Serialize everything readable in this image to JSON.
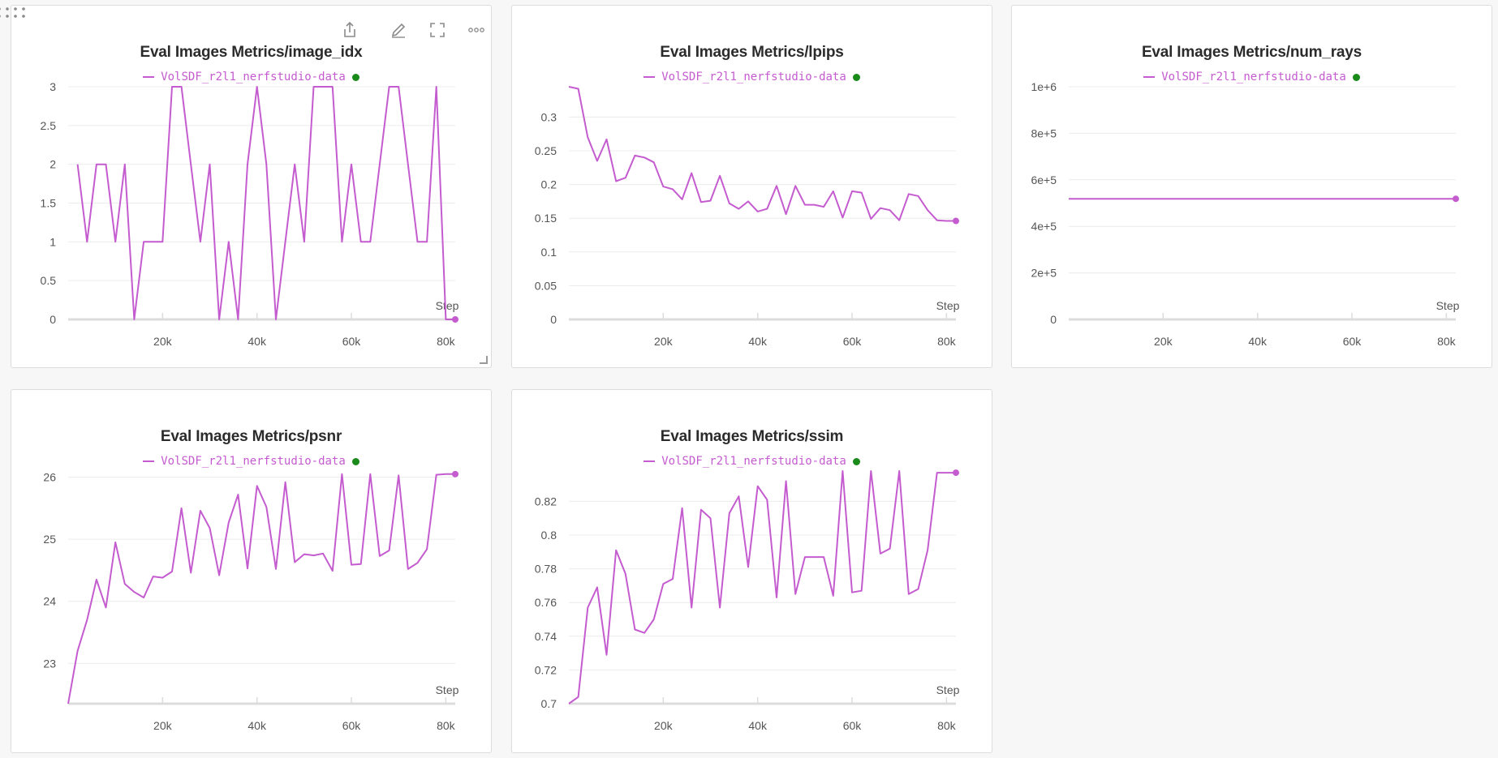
{
  "colors": {
    "series": "#c45ccf",
    "status_dot": "#1a8a1a",
    "grid": "#ececec",
    "axis": "#dcdcdc",
    "tick": "#555555"
  },
  "toolbar": {
    "icons": [
      "drag-handle-icon",
      "share-icon",
      "edit-icon",
      "fullscreen-icon",
      "more-icon"
    ]
  },
  "series_name": "VolSDF_r2l1_nerfstudio-data",
  "chart_data": [
    {
      "id": "image_idx",
      "type": "line",
      "title": "Eval Images Metrics/image_idx",
      "xlabel": "Step",
      "xlim": [
        0,
        82000
      ],
      "ylim": [
        0,
        3
      ],
      "xticks": [
        20000,
        40000,
        60000,
        80000
      ],
      "xtick_labels": [
        "20k",
        "40k",
        "60k",
        "80k"
      ],
      "yticks": [
        0,
        0.5,
        1,
        1.5,
        2,
        2.5,
        3
      ],
      "ytick_labels": [
        "0",
        "0.5",
        "1",
        "1.5",
        "2",
        "2.5",
        "3"
      ],
      "series": [
        {
          "name": "VolSDF_r2l1_nerfstudio-data",
          "x": [
            2000,
            4000,
            6000,
            8000,
            10000,
            12000,
            14000,
            16000,
            18000,
            20000,
            22000,
            24000,
            26000,
            28000,
            30000,
            32000,
            34000,
            36000,
            38000,
            40000,
            42000,
            44000,
            46000,
            48000,
            50000,
            52000,
            54000,
            56000,
            58000,
            60000,
            62000,
            64000,
            66000,
            68000,
            70000,
            72000,
            74000,
            76000,
            78000,
            80000,
            82000
          ],
          "values": [
            2,
            1,
            2,
            2,
            1,
            2,
            0,
            1,
            1,
            1,
            3,
            3,
            2,
            1,
            2,
            0,
            1,
            0,
            2,
            3,
            2,
            0,
            1,
            2,
            1,
            3,
            3,
            3,
            1,
            2,
            1,
            1,
            2,
            3,
            3,
            2,
            1,
            1,
            3,
            0,
            0
          ]
        }
      ]
    },
    {
      "id": "lpips",
      "type": "line",
      "title": "Eval Images Metrics/lpips",
      "xlabel": "Step",
      "xlim": [
        0,
        82000
      ],
      "ylim": [
        0,
        0.345
      ],
      "xticks": [
        20000,
        40000,
        60000,
        80000
      ],
      "xtick_labels": [
        "20k",
        "40k",
        "60k",
        "80k"
      ],
      "yticks": [
        0,
        0.05,
        0.1,
        0.15,
        0.2,
        0.25,
        0.3
      ],
      "ytick_labels": [
        "0",
        "0.05",
        "0.1",
        "0.15",
        "0.2",
        "0.25",
        "0.3"
      ],
      "series": [
        {
          "name": "VolSDF_r2l1_nerfstudio-data",
          "x": [
            0,
            2000,
            4000,
            6000,
            8000,
            10000,
            12000,
            14000,
            16000,
            18000,
            20000,
            22000,
            24000,
            26000,
            28000,
            30000,
            32000,
            34000,
            36000,
            38000,
            40000,
            42000,
            44000,
            46000,
            48000,
            50000,
            52000,
            54000,
            56000,
            58000,
            60000,
            62000,
            64000,
            66000,
            68000,
            70000,
            72000,
            74000,
            76000,
            78000,
            80000,
            82000
          ],
          "values": [
            0.345,
            0.342,
            0.27,
            0.235,
            0.267,
            0.205,
            0.21,
            0.243,
            0.24,
            0.233,
            0.197,
            0.193,
            0.178,
            0.217,
            0.174,
            0.176,
            0.213,
            0.172,
            0.164,
            0.175,
            0.16,
            0.164,
            0.198,
            0.156,
            0.198,
            0.17,
            0.17,
            0.167,
            0.19,
            0.151,
            0.19,
            0.188,
            0.149,
            0.165,
            0.162,
            0.147,
            0.186,
            0.183,
            0.162,
            0.147,
            0.146,
            0.146
          ]
        }
      ]
    },
    {
      "id": "num_rays",
      "type": "line",
      "title": "Eval Images Metrics/num_rays",
      "xlabel": "Step",
      "xlim": [
        0,
        82000
      ],
      "ylim": [
        0,
        1000000
      ],
      "xticks": [
        20000,
        40000,
        60000,
        80000
      ],
      "xtick_labels": [
        "20k",
        "40k",
        "60k",
        "80k"
      ],
      "yticks": [
        0,
        200000,
        400000,
        600000,
        800000,
        1000000
      ],
      "ytick_labels": [
        "0",
        "2e+5",
        "4e+5",
        "6e+5",
        "8e+5",
        "1e+6"
      ],
      "series": [
        {
          "name": "VolSDF_r2l1_nerfstudio-data",
          "x": [
            0,
            82000
          ],
          "values": [
            518400,
            518400
          ]
        }
      ]
    },
    {
      "id": "psnr",
      "type": "line",
      "title": "Eval Images Metrics/psnr",
      "xlabel": "Step",
      "xlim": [
        0,
        82000
      ],
      "ylim": [
        22.35,
        26.1
      ],
      "xticks": [
        20000,
        40000,
        60000,
        80000
      ],
      "xtick_labels": [
        "20k",
        "40k",
        "60k",
        "80k"
      ],
      "yticks": [
        23,
        24,
        25,
        26
      ],
      "ytick_labels": [
        "23",
        "24",
        "25",
        "26"
      ],
      "series": [
        {
          "name": "VolSDF_r2l1_nerfstudio-data",
          "x": [
            0,
            2000,
            4000,
            6000,
            8000,
            10000,
            12000,
            14000,
            16000,
            18000,
            20000,
            22000,
            24000,
            26000,
            28000,
            30000,
            32000,
            34000,
            36000,
            38000,
            40000,
            42000,
            44000,
            46000,
            48000,
            50000,
            52000,
            54000,
            56000,
            58000,
            60000,
            62000,
            64000,
            66000,
            68000,
            70000,
            72000,
            74000,
            76000,
            78000,
            80000,
            82000
          ],
          "values": [
            22.35,
            23.2,
            23.7,
            24.35,
            23.9,
            24.95,
            24.28,
            24.15,
            24.06,
            24.4,
            24.38,
            24.48,
            25.5,
            24.46,
            25.46,
            25.18,
            24.42,
            25.27,
            25.72,
            24.53,
            25.86,
            25.52,
            24.52,
            25.92,
            24.63,
            24.76,
            24.74,
            24.77,
            24.49,
            26.05,
            24.59,
            24.6,
            26.05,
            24.73,
            24.82,
            26.03,
            24.52,
            24.62,
            24.84,
            26.04,
            26.05,
            26.05
          ]
        }
      ]
    },
    {
      "id": "ssim",
      "type": "line",
      "title": "Eval Images Metrics/ssim",
      "xlabel": "Step",
      "xlim": [
        0,
        82000
      ],
      "ylim": [
        0.7,
        0.838
      ],
      "xticks": [
        20000,
        40000,
        60000,
        80000
      ],
      "xtick_labels": [
        "20k",
        "40k",
        "60k",
        "80k"
      ],
      "yticks": [
        0.7,
        0.72,
        0.74,
        0.76,
        0.78,
        0.8,
        0.82
      ],
      "ytick_labels": [
        "0.7",
        "0.72",
        "0.74",
        "0.76",
        "0.78",
        "0.8",
        "0.82"
      ],
      "series": [
        {
          "name": "VolSDF_r2l1_nerfstudio-data",
          "x": [
            0,
            2000,
            4000,
            6000,
            8000,
            10000,
            12000,
            14000,
            16000,
            18000,
            20000,
            22000,
            24000,
            26000,
            28000,
            30000,
            32000,
            34000,
            36000,
            38000,
            40000,
            42000,
            44000,
            46000,
            48000,
            50000,
            52000,
            54000,
            56000,
            58000,
            60000,
            62000,
            64000,
            66000,
            68000,
            70000,
            72000,
            74000,
            76000,
            78000,
            80000,
            82000
          ],
          "values": [
            0.7,
            0.704,
            0.757,
            0.769,
            0.729,
            0.791,
            0.777,
            0.744,
            0.742,
            0.75,
            0.771,
            0.774,
            0.816,
            0.757,
            0.815,
            0.81,
            0.757,
            0.813,
            0.823,
            0.781,
            0.829,
            0.821,
            0.763,
            0.832,
            0.765,
            0.787,
            0.787,
            0.787,
            0.764,
            0.838,
            0.766,
            0.767,
            0.838,
            0.789,
            0.792,
            0.838,
            0.765,
            0.768,
            0.791,
            0.837,
            0.837,
            0.837
          ]
        }
      ]
    }
  ]
}
